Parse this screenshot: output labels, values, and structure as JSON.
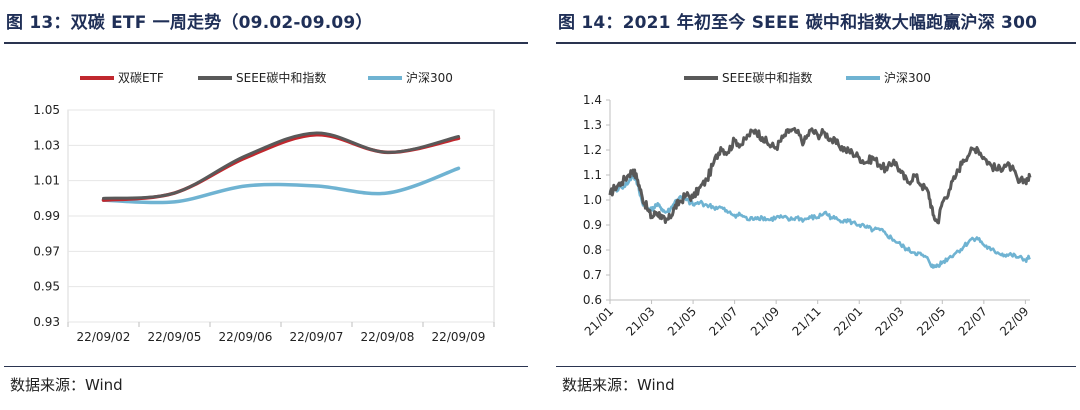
{
  "charts": [
    {
      "title": "图 13：双碳 ETF 一周走势（09.02-09.09）",
      "source": "数据来源：Wind"
    },
    {
      "title": "图 14：2021 年初至今 SEEE 碳中和指数大幅跑赢沪深 300",
      "source": "数据来源：Wind"
    }
  ],
  "chart_data": [
    {
      "type": "line",
      "title": "图 13：双碳 ETF 一周走势（09.02-09.09）",
      "categories": [
        "22/09/02",
        "22/09/05",
        "22/09/06",
        "22/09/07",
        "22/09/08",
        "22/09/09"
      ],
      "series": [
        {
          "name": "双碳ETF",
          "color": "#c0282e",
          "values": [
            0.999,
            1.003,
            1.023,
            1.036,
            1.026,
            1.034
          ]
        },
        {
          "name": "SEEE碳中和指数",
          "color": "#595959",
          "values": [
            1.0,
            1.003,
            1.024,
            1.037,
            1.026,
            1.035
          ]
        },
        {
          "name": "沪深300",
          "color": "#6fb3d2",
          "values": [
            0.999,
            0.998,
            1.007,
            1.007,
            1.003,
            1.017
          ]
        }
      ],
      "yticks": [
        "1.05",
        "1.03",
        "1.01",
        "0.99",
        "0.97",
        "0.95",
        "0.93"
      ],
      "ylim": [
        0.93,
        1.05
      ],
      "grid": true,
      "legend": "top"
    },
    {
      "type": "line",
      "title": "图 14：2021 年初至今 SEEE 碳中和指数大幅跑赢沪深 300",
      "xticks": [
        "21/01",
        "21/03",
        "21/05",
        "21/07",
        "21/09",
        "21/11",
        "22/01",
        "22/03",
        "22/05",
        "22/07",
        "22/09"
      ],
      "series": [
        {
          "name": "SEEE碳中和指数",
          "color": "#595959",
          "points": [
            [
              0,
              1.02
            ],
            [
              0.2,
              1.05
            ],
            [
              0.5,
              1.07
            ],
            [
              0.8,
              1.1
            ],
            [
              1.0,
              1.12
            ],
            [
              1.2,
              1.08
            ],
            [
              1.4,
              1.01
            ],
            [
              1.6,
              0.97
            ],
            [
              1.8,
              0.93
            ],
            [
              2.0,
              0.95
            ],
            [
              2.2,
              0.94
            ],
            [
              2.4,
              0.91
            ],
            [
              2.6,
              0.93
            ],
            [
              2.8,
              0.97
            ],
            [
              3.0,
              0.99
            ],
            [
              3.3,
              1.02
            ],
            [
              3.6,
              1.01
            ],
            [
              3.9,
              1.05
            ],
            [
              4.2,
              1.08
            ],
            [
              4.5,
              1.15
            ],
            [
              4.8,
              1.21
            ],
            [
              5.1,
              1.19
            ],
            [
              5.4,
              1.24
            ],
            [
              5.7,
              1.22
            ],
            [
              6.0,
              1.26
            ],
            [
              6.3,
              1.28
            ],
            [
              6.6,
              1.25
            ],
            [
              6.9,
              1.22
            ],
            [
              7.2,
              1.21
            ],
            [
              7.5,
              1.25
            ],
            [
              7.8,
              1.28
            ],
            [
              8.1,
              1.27
            ],
            [
              8.4,
              1.23
            ],
            [
              8.7,
              1.28
            ],
            [
              9.0,
              1.26
            ],
            [
              9.3,
              1.27
            ],
            [
              9.6,
              1.24
            ],
            [
              9.9,
              1.22
            ],
            [
              10.2,
              1.2
            ],
            [
              10.5,
              1.19
            ],
            [
              10.8,
              1.17
            ],
            [
              11.1,
              1.15
            ],
            [
              11.4,
              1.17
            ],
            [
              11.7,
              1.14
            ],
            [
              12.0,
              1.12
            ],
            [
              12.3,
              1.16
            ],
            [
              12.6,
              1.11
            ],
            [
              12.9,
              1.07
            ],
            [
              13.2,
              1.1
            ],
            [
              13.5,
              1.06
            ],
            [
              13.8,
              1.03
            ],
            [
              14.0,
              0.94
            ],
            [
              14.2,
              0.91
            ],
            [
              14.4,
              0.99
            ],
            [
              14.7,
              1.04
            ],
            [
              15.0,
              1.1
            ],
            [
              15.3,
              1.16
            ],
            [
              15.6,
              1.19
            ],
            [
              15.9,
              1.21
            ],
            [
              16.2,
              1.17
            ],
            [
              16.5,
              1.14
            ],
            [
              16.8,
              1.12
            ],
            [
              17.1,
              1.14
            ],
            [
              17.4,
              1.13
            ],
            [
              17.7,
              1.07
            ],
            [
              18.0,
              1.08
            ],
            [
              18.2,
              1.09
            ]
          ]
        },
        {
          "name": "沪深300",
          "color": "#6fb3d2",
          "points": [
            [
              0,
              1.03
            ],
            [
              0.2,
              1.04
            ],
            [
              0.5,
              1.05
            ],
            [
              0.8,
              1.07
            ],
            [
              1.0,
              1.1
            ],
            [
              1.2,
              1.06
            ],
            [
              1.4,
              0.99
            ],
            [
              1.6,
              0.97
            ],
            [
              1.8,
              0.96
            ],
            [
              2.0,
              0.98
            ],
            [
              2.2,
              0.97
            ],
            [
              2.4,
              0.95
            ],
            [
              2.6,
              0.96
            ],
            [
              2.8,
              0.99
            ],
            [
              3.0,
              1.01
            ],
            [
              3.3,
              1.0
            ],
            [
              3.6,
              0.98
            ],
            [
              3.9,
              0.99
            ],
            [
              4.2,
              0.98
            ],
            [
              4.5,
              0.97
            ],
            [
              4.8,
              0.97
            ],
            [
              5.1,
              0.95
            ],
            [
              5.4,
              0.94
            ],
            [
              5.7,
              0.94
            ],
            [
              6.0,
              0.92
            ],
            [
              6.3,
              0.93
            ],
            [
              6.6,
              0.93
            ],
            [
              6.9,
              0.92
            ],
            [
              7.2,
              0.93
            ],
            [
              7.5,
              0.93
            ],
            [
              7.8,
              0.92
            ],
            [
              8.1,
              0.93
            ],
            [
              8.4,
              0.92
            ],
            [
              8.7,
              0.93
            ],
            [
              9.0,
              0.93
            ],
            [
              9.3,
              0.95
            ],
            [
              9.6,
              0.93
            ],
            [
              9.9,
              0.92
            ],
            [
              10.2,
              0.92
            ],
            [
              10.5,
              0.91
            ],
            [
              10.8,
              0.9
            ],
            [
              11.1,
              0.89
            ],
            [
              11.4,
              0.88
            ],
            [
              11.7,
              0.88
            ],
            [
              12.0,
              0.86
            ],
            [
              12.3,
              0.84
            ],
            [
              12.6,
              0.82
            ],
            [
              12.9,
              0.8
            ],
            [
              13.2,
              0.79
            ],
            [
              13.5,
              0.78
            ],
            [
              13.8,
              0.76
            ],
            [
              14.0,
              0.73
            ],
            [
              14.2,
              0.74
            ],
            [
              14.4,
              0.75
            ],
            [
              14.7,
              0.77
            ],
            [
              15.0,
              0.79
            ],
            [
              15.3,
              0.81
            ],
            [
              15.6,
              0.84
            ],
            [
              15.9,
              0.85
            ],
            [
              16.2,
              0.82
            ],
            [
              16.5,
              0.8
            ],
            [
              16.8,
              0.79
            ],
            [
              17.1,
              0.78
            ],
            [
              17.4,
              0.78
            ],
            [
              17.7,
              0.77
            ],
            [
              18.0,
              0.76
            ],
            [
              18.2,
              0.77
            ]
          ]
        }
      ],
      "yticks": [
        "1.4",
        "1.3",
        "1.2",
        "1.1",
        "1.0",
        "0.9",
        "0.8",
        "0.7",
        "0.6"
      ],
      "ylim": [
        0.6,
        1.4
      ],
      "grid": false,
      "legend": "top"
    }
  ]
}
